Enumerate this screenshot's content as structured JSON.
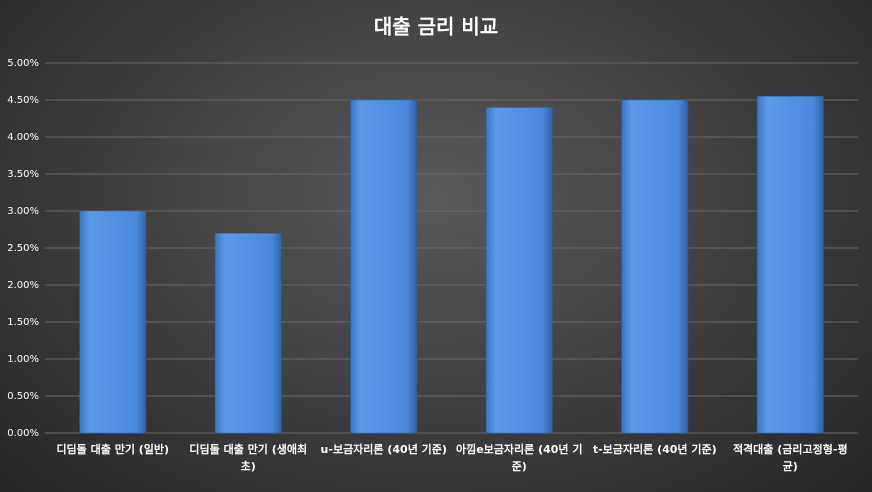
{
  "chart_data": {
    "type": "bar",
    "title": "대출 금리 비교",
    "categories": [
      "디딤돌 대출 만기 (일반)",
      "디딤돌 대출 만기 (생애최초)",
      "u-보금자리론 (40년 기준)",
      "아낌e보금자리론 (40년 기준)",
      "t-보금자리론 (40년 기준)",
      "적격대출 (금리고정형-평균)"
    ],
    "values": [
      3.0,
      2.7,
      4.5,
      4.4,
      4.5,
      4.55
    ],
    "color": "#4a89dc",
    "ylim": [
      0,
      5
    ],
    "yticks": [
      {
        "value": 0,
        "label": "0.00%"
      },
      {
        "value": 0.5,
        "label": "0.50%"
      },
      {
        "value": 1,
        "label": "1.00%"
      },
      {
        "value": 1.5,
        "label": "1.50%"
      },
      {
        "value": 2,
        "label": "2.00%"
      },
      {
        "value": 2.5,
        "label": "2.50%"
      },
      {
        "value": 3,
        "label": "3.00%"
      },
      {
        "value": 3.5,
        "label": "3.50%"
      },
      {
        "value": 4,
        "label": "4.00%"
      },
      {
        "value": 4.5,
        "label": "4.50%"
      },
      {
        "value": 5,
        "label": "5.00%"
      }
    ],
    "grid": true
  }
}
